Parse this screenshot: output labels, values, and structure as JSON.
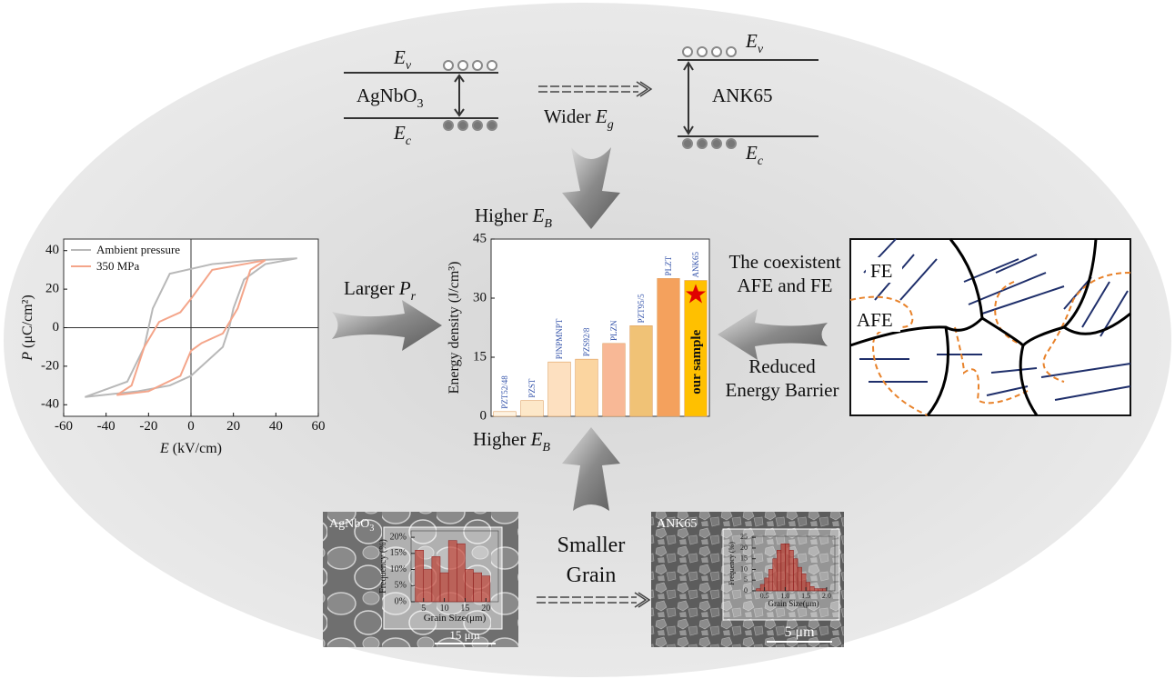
{
  "chart_data": [
    {
      "type": "line",
      "xlabel": {
        "symbol": "E",
        "text": " (kV/cm)"
      },
      "ylabel": {
        "symbol": "P",
        "text": " (μC/cm²)"
      },
      "xlim": [
        -60,
        60
      ],
      "xticks": [
        -60,
        -40,
        -20,
        0,
        20,
        40,
        60
      ],
      "ylim": [
        -46,
        46
      ],
      "yticks": [
        -40,
        -20,
        0,
        20,
        40
      ],
      "legend": "upper left",
      "series": [
        {
          "name": "Ambient pressure",
          "color": "#b8b8b8",
          "x": [
            -50,
            -25,
            -10,
            0,
            15,
            18,
            20,
            25,
            35,
            50,
            30,
            10,
            -10,
            -18,
            -20,
            -22,
            -30,
            -50
          ],
          "values": [
            -36,
            -33,
            -30,
            -25,
            -10,
            0,
            10,
            25,
            33,
            36,
            35,
            33,
            28,
            10,
            0,
            -10,
            -28,
            -36
          ]
        },
        {
          "name": "350 MPa",
          "color": "#f4a58a",
          "x": [
            -35,
            -20,
            -5,
            0,
            5,
            15,
            22,
            28,
            35,
            25,
            10,
            0,
            -5,
            -15,
            -22,
            -28,
            -35
          ],
          "values": [
            -35,
            -33,
            -25,
            -12,
            -8,
            -3,
            10,
            30,
            35,
            33,
            30,
            15,
            8,
            3,
            -10,
            -30,
            -35
          ]
        }
      ]
    },
    {
      "type": "bar",
      "ylabel": "Energy density (J/cm³)",
      "categories": [
        "PZT52/48",
        "PZST",
        "PINPMNPT",
        "PZS92/8",
        "PLZN",
        "PZT95/5",
        "PLZT",
        "ANK65"
      ],
      "values": [
        1.2,
        4,
        13.8,
        14.5,
        18.5,
        23,
        35,
        34.5
      ],
      "colors": [
        "#fdf3e3",
        "#fde8c9",
        "#fde0c0",
        "#fbd5a0",
        "#f8b896",
        "#f0c276",
        "#f4a15d",
        "#ffc000"
      ],
      "label_color": "#2f4fa8",
      "annotation": "our sample",
      "ylim": [
        0,
        45
      ],
      "yticks": [
        0,
        15,
        30,
        45
      ]
    },
    {
      "type": "histogram",
      "ylabel": "Frequency (%)",
      "xlabel": "Grain Size(μm)",
      "bins": [
        3,
        5,
        7,
        9,
        11,
        13,
        15,
        17,
        19,
        21
      ],
      "values": [
        16,
        10,
        14,
        9,
        19,
        18,
        10,
        9,
        8
      ],
      "color": "#c0392b",
      "xlim": [
        2,
        23
      ],
      "xticks": [
        5,
        10,
        15,
        20
      ],
      "ylim": [
        0,
        22
      ],
      "yticks": [
        {
          "value": 0,
          "label": "0%"
        },
        {
          "value": 5,
          "label": "5%"
        },
        {
          "value": 10,
          "label": "10%"
        },
        {
          "value": 15,
          "label": "15%"
        },
        {
          "value": 20,
          "label": "20%"
        }
      ]
    },
    {
      "type": "histogram",
      "ylabel": "Frequency (%)",
      "xlabel": "Grain Size(μm)",
      "bins": [
        0.3,
        0.4,
        0.5,
        0.6,
        0.7,
        0.8,
        0.9,
        1.0,
        1.1,
        1.2,
        1.3,
        1.4,
        1.5,
        1.6,
        1.7,
        1.8,
        1.9,
        2.0
      ],
      "values": [
        1,
        3,
        6,
        10,
        15,
        19,
        22,
        22,
        19,
        15,
        11,
        8,
        4,
        2,
        1,
        1,
        1
      ],
      "color": "#c0392b",
      "xlim": [
        0.2,
        2.2
      ],
      "xticks": [
        0.5,
        {
          "value": 1,
          "label": "1.0"
        },
        1.5,
        {
          "value": 2,
          "label": "2.0"
        }
      ],
      "ylim": [
        0,
        25.5
      ],
      "yticks": [
        0,
        5,
        10,
        15,
        20,
        25
      ]
    }
  ],
  "band_gap": {
    "left": {
      "ev": {
        "symbol": "E",
        "sub": "v"
      },
      "material": {
        "base": "AgNbO",
        "sub": "3"
      },
      "ec": {
        "symbol": "E",
        "sub": "c"
      }
    },
    "right": {
      "ev": {
        "symbol": "E",
        "sub": "v"
      },
      "material": "ANK65",
      "ec": {
        "symbol": "E",
        "sub": "c"
      }
    },
    "arrow_label": {
      "text": "Wider ",
      "symbol": "E",
      "sub": "g"
    }
  },
  "higher_top": {
    "text": "Higher ",
    "symbol": "E",
    "sub": "B"
  },
  "higher_bottom": {
    "text": "Higher ",
    "symbol": "E",
    "sub": "B"
  },
  "left_arrow_label": {
    "text": "Larger ",
    "symbol": "P",
    "sub": "r"
  },
  "right_labels": {
    "top": [
      "The coexistent",
      "AFE and FE"
    ],
    "bottom": [
      "Reduced",
      "Energy Barrier"
    ]
  },
  "domains": {
    "fe": "FE",
    "afe": "AFE"
  },
  "grain": {
    "label": [
      "Smaller",
      "Grain"
    ],
    "left_image": {
      "label": {
        "base": "AgNbO",
        "sub": "3"
      },
      "scale": "15 μm"
    },
    "right_image": {
      "label": "ANK65",
      "scale": "5 μm"
    }
  }
}
